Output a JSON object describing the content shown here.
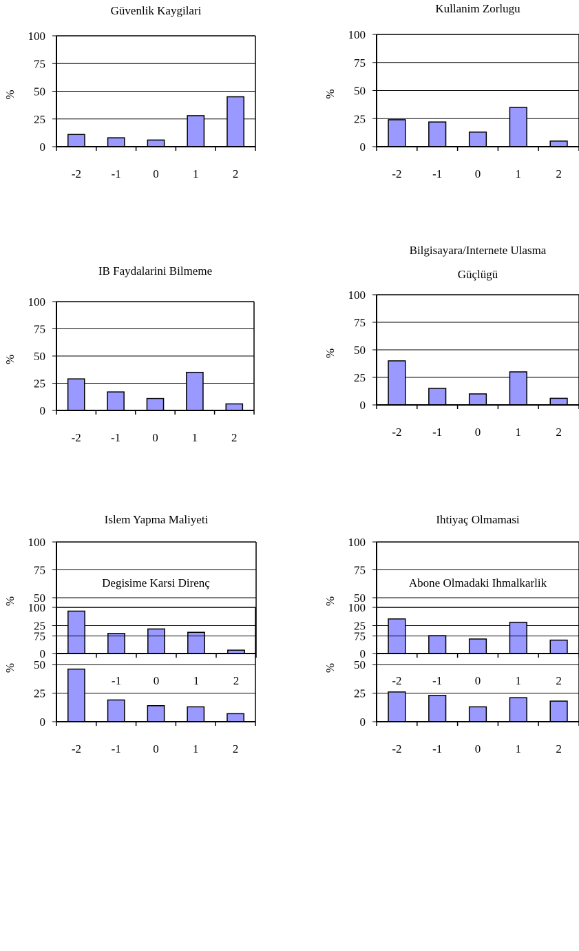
{
  "chart_data": [
    {
      "type": "bar",
      "title": "Güvenlik Kaygilari",
      "ylabel": "%",
      "categories": [
        "-2",
        "-1",
        "0",
        "1",
        "2"
      ],
      "values": [
        11,
        8,
        6,
        28,
        45
      ],
      "yticks": [
        "0",
        "25",
        "50",
        "75",
        "100"
      ],
      "ylim": [
        0,
        100
      ],
      "bar_color": "#9999ff"
    },
    {
      "type": "bar",
      "title": "Kullanim Zorlugu",
      "ylabel": "%",
      "categories": [
        "-2",
        "-1",
        "0",
        "1",
        "2"
      ],
      "values": [
        24,
        22,
        13,
        35,
        5
      ],
      "yticks": [
        "0",
        "25",
        "50",
        "75",
        "100"
      ],
      "ylim": [
        0,
        100
      ],
      "bar_color": "#9999ff"
    },
    {
      "type": "bar",
      "title": "IB Faydalarini Bilmeme",
      "ylabel": "%",
      "categories": [
        "-2",
        "-1",
        "0",
        "1",
        "2"
      ],
      "values": [
        29,
        17,
        11,
        35,
        6
      ],
      "yticks": [
        "0",
        "25",
        "50",
        "75",
        "100"
      ],
      "ylim": [
        0,
        100
      ],
      "bar_color": "#9999ff"
    },
    {
      "type": "bar",
      "title": "Bilgisayara/Internete Ulasma Güçlügü",
      "title_lines": [
        "Bilgisayara/Internete Ulasma",
        "Güçlügü"
      ],
      "ylabel": "%",
      "categories": [
        "-2",
        "-1",
        "0",
        "1",
        "2"
      ],
      "values": [
        40,
        15,
        10,
        30,
        6
      ],
      "yticks": [
        "0",
        "25",
        "50",
        "75",
        "100"
      ],
      "ylim": [
        0,
        100
      ],
      "bar_color": "#9999ff"
    },
    {
      "type": "bar",
      "title": "Islem Yapma Maliyeti",
      "ylabel": "%",
      "categories": [
        "-2",
        "-1",
        "0",
        "1",
        "2"
      ],
      "values": [
        38,
        18,
        22,
        19,
        3
      ],
      "yticks": [
        "0",
        "25",
        "50",
        "75",
        "100"
      ],
      "ylim": [
        0,
        100
      ],
      "bar_color": "#9999ff"
    },
    {
      "type": "bar",
      "title": "Ihtiyaç Olmamasi",
      "ylabel": "%",
      "categories": [
        "-2",
        "-1",
        "0",
        "1",
        "2"
      ],
      "values": [
        31,
        16,
        13,
        28,
        12
      ],
      "yticks": [
        "0",
        "25",
        "50",
        "75",
        "100"
      ],
      "ylim": [
        0,
        100
      ],
      "bar_color": "#9999ff"
    },
    {
      "type": "bar",
      "title": "Degisime Karsi Direnç",
      "ylabel": "%",
      "categories": [
        "-2",
        "-1",
        "0",
        "1",
        "2"
      ],
      "values": [
        46,
        19,
        14,
        13,
        7
      ],
      "yticks": [
        "0",
        "25",
        "50",
        "75",
        "100"
      ],
      "ylim": [
        0,
        100
      ],
      "bar_color": "#9999ff"
    },
    {
      "type": "bar",
      "title": "Abone Olmadaki Ihmalkarlik",
      "ylabel": "%",
      "categories": [
        "-2",
        "-1",
        "0",
        "1",
        "2"
      ],
      "values": [
        26,
        23,
        13,
        21,
        18
      ],
      "yticks": [
        "0",
        "25",
        "50",
        "75",
        "100"
      ],
      "ylim": [
        0,
        100
      ],
      "bar_color": "#9999ff"
    }
  ]
}
